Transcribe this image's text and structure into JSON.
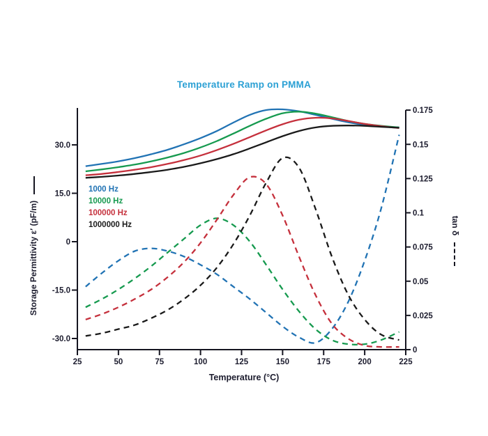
{
  "chart_data": {
    "type": "line",
    "title": "Temperature Ramp on PMMA",
    "title_color": "#2ba0d4",
    "xlabel": "Temperature (°C)",
    "ylabel_left": "Storage Permittivity ε′ (pF/m)",
    "ylabel_right": "tan δ",
    "axis_color": "#151520",
    "background": "#ffffff",
    "grid": false,
    "legend_position": "inside-left",
    "x_axis": {
      "min": 25,
      "max": 225,
      "ticks": [
        25,
        50,
        75,
        100,
        125,
        150,
        175,
        200,
        225
      ],
      "labels": [
        "25",
        "50",
        "75",
        "100",
        "125",
        "150",
        "175",
        "200",
        "225"
      ]
    },
    "y_left": {
      "min": -33.4,
      "max": 41.4,
      "ticks": [
        30,
        15,
        0,
        -15,
        -30
      ],
      "labels": [
        "30.0",
        "15.0",
        "0",
        "-15.0",
        "-30.0"
      ]
    },
    "y_right": {
      "min": 0,
      "max": 0.176,
      "ticks": [
        0,
        0.025,
        0.05,
        0.075,
        0.1,
        0.125,
        0.15,
        0.175
      ],
      "labels": [
        "0",
        "0.025",
        "0.05",
        "0.075",
        "0.1",
        "0.125",
        "0.15",
        "0.175"
      ]
    },
    "x": [
      30,
      40,
      50,
      60,
      70,
      80,
      90,
      100,
      110,
      120,
      130,
      140,
      150,
      160,
      170,
      180,
      190,
      200,
      210,
      221
    ],
    "series": [
      {
        "name": "1000 Hz",
        "color": "#2173b4",
        "storage_permittivity": [
          23.4,
          24.1,
          24.9,
          25.9,
          27.1,
          28.5,
          30.2,
          32.1,
          34.3,
          36.9,
          39.3,
          40.8,
          41.0,
          40.4,
          39.3,
          38.1,
          37.0,
          36.2,
          35.7,
          35.4
        ],
        "tan_delta": [
          0.046,
          0.056,
          0.065,
          0.072,
          0.074,
          0.072,
          0.068,
          0.062,
          0.055,
          0.046,
          0.037,
          0.027,
          0.017,
          0.009,
          0.005,
          0.015,
          0.035,
          0.065,
          0.103,
          0.157
        ]
      },
      {
        "name": "10000 Hz",
        "color": "#169a4f",
        "storage_permittivity": [
          21.8,
          22.4,
          23.1,
          23.9,
          24.9,
          26.1,
          27.5,
          29.2,
          31.2,
          33.5,
          35.9,
          38.1,
          39.8,
          40.3,
          39.7,
          38.6,
          37.4,
          36.5,
          35.9,
          35.4
        ],
        "tan_delta": [
          0.031,
          0.037,
          0.044,
          0.052,
          0.061,
          0.071,
          0.081,
          0.091,
          0.096,
          0.091,
          0.079,
          0.062,
          0.044,
          0.028,
          0.015,
          0.007,
          0.004,
          0.004,
          0.007,
          0.013
        ]
      },
      {
        "name": "100000 Hz",
        "color": "#c5303c",
        "storage_permittivity": [
          20.6,
          21.0,
          21.6,
          22.3,
          23.1,
          24.1,
          25.3,
          26.7,
          28.4,
          30.3,
          32.4,
          34.5,
          36.4,
          37.8,
          38.4,
          38.2,
          37.4,
          36.5,
          35.8,
          35.2
        ],
        "tan_delta": [
          0.022,
          0.026,
          0.031,
          0.037,
          0.044,
          0.053,
          0.064,
          0.078,
          0.095,
          0.113,
          0.126,
          0.121,
          0.098,
          0.068,
          0.04,
          0.019,
          0.008,
          0.003,
          0.002,
          0.002
        ]
      },
      {
        "name": "1000000 Hz",
        "color": "#1a1a1a",
        "storage_permittivity": [
          19.8,
          20.1,
          20.5,
          21.0,
          21.6,
          22.3,
          23.2,
          24.3,
          25.6,
          27.1,
          28.9,
          30.8,
          32.7,
          34.3,
          35.4,
          35.9,
          36.0,
          35.9,
          35.6,
          35.3
        ],
        "tan_delta": [
          0.01,
          0.012,
          0.015,
          0.018,
          0.023,
          0.029,
          0.037,
          0.047,
          0.06,
          0.077,
          0.098,
          0.122,
          0.14,
          0.133,
          0.103,
          0.068,
          0.04,
          0.022,
          0.011,
          0.007
        ]
      }
    ],
    "line_styles": {
      "storage_permittivity": "solid",
      "tan_delta": "dashed"
    }
  }
}
